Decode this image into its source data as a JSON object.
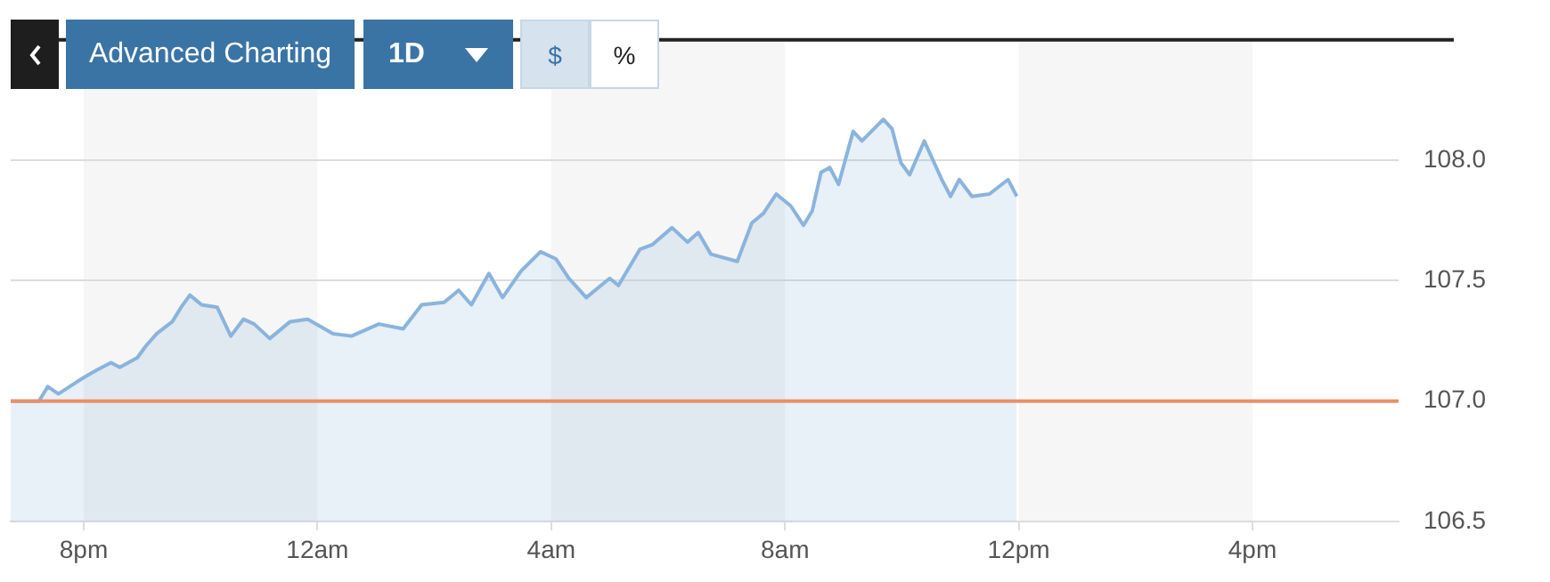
{
  "chart_data": {
    "type": "area",
    "annotations": [
      "Advanced Charting",
      "1D",
      "$",
      "%"
    ],
    "xlim": [
      "--01-01T18:45",
      "--01-02T18:30"
    ],
    "xticks": [
      {
        "value": "--01-01T20:00",
        "label": "8pm"
      },
      {
        "value": "--01-02T00:00",
        "label": "12am"
      },
      {
        "value": "--01-02T04:00",
        "label": "4am"
      },
      {
        "value": "--01-02T08:00",
        "label": "8am"
      },
      {
        "value": "--01-02T12:00",
        "label": "12pm"
      },
      {
        "value": "--01-02T16:00",
        "label": "4pm"
      }
    ],
    "ylim": [
      106.5,
      108.5
    ],
    "yticks": [
      106.5,
      {
        "value": 107,
        "label": "107.0"
      },
      107.5,
      {
        "value": 108,
        "label": "108.0"
      }
    ],
    "grid": "y",
    "legend": false,
    "marker": "none",
    "line_style": "solid",
    "ref_lines": [
      {
        "axis": "y",
        "value": 107,
        "color": "#e8906a"
      }
    ],
    "bands": [
      {
        "axis": "x",
        "from": "--01-01T20:00",
        "to": "--01-02T00:00",
        "color": "#f6f6f6"
      },
      {
        "axis": "x",
        "from": "--01-02T04:00",
        "to": "--01-02T08:00",
        "color": "#f6f6f6"
      },
      {
        "axis": "x",
        "from": "--01-02T12:00",
        "to": "--01-02T16:00",
        "color": "#f6f6f6"
      }
    ],
    "series": [
      {
        "color": "#8ab4dd",
        "x": [
          "--01-01T18:45",
          "--01-01T18:58",
          "--01-01T19:14",
          "--01-01T19:23",
          "--01-01T19:34",
          "--01-01T19:53",
          "--01-01T20:05",
          "--01-01T20:14",
          "--01-01T20:28",
          "--01-01T20:37",
          "--01-01T20:55",
          "--01-01T21:04",
          "--01-01T21:15",
          "--01-01T21:31",
          "--01-01T21:40",
          "--01-01T21:49",
          "--01-01T22:01",
          "--01-01T22:17",
          "--01-01T22:31",
          "--01-01T22:44",
          "--01-01T22:55",
          "--01-01T23:11",
          "--01-01T23:32",
          "--01-01T23:50",
          "--01-02T00:16",
          "--01-02T00:35",
          "--01-02T01:03",
          "--01-02T01:28",
          "--01-02T01:47",
          "--01-02T02:10",
          "--01-02T02:25",
          "--01-02T02:38",
          "--01-02T02:56",
          "--01-02T03:10",
          "--01-02T03:29",
          "--01-02T03:49",
          "--01-02T04:05",
          "--01-02T04:18",
          "--01-02T04:36",
          "--01-02T05:00",
          "--01-02T05:09",
          "--01-02T05:31",
          "--01-02T05:44",
          "--01-02T06:04",
          "--01-02T06:20",
          "--01-02T06:31",
          "--01-02T06:44",
          "--01-02T07:11",
          "--01-02T07:26",
          "--01-02T07:38",
          "--01-02T07:51",
          "--01-02T08:06",
          "--01-02T08:19",
          "--01-02T08:28",
          "--01-02T08:37",
          "--01-02T08:46",
          "--01-02T08:55",
          "--01-02T09:10",
          "--01-02T09:19",
          "--01-02T09:41",
          "--01-02T09:50",
          "--01-02T09:59",
          "--01-02T10:08",
          "--01-02T10:23",
          "--01-02T10:41",
          "--01-02T10:50",
          "--01-02T10:59",
          "--01-02T11:12",
          "--01-02T11:30",
          "--01-02T11:49",
          "--01-02T11:58"
        ],
        "values": [
          107.0,
          107.0,
          107.0,
          107.06,
          107.03,
          107.08,
          107.11,
          107.13,
          107.16,
          107.14,
          107.18,
          107.23,
          107.28,
          107.33,
          107.39,
          107.44,
          107.4,
          107.39,
          107.27,
          107.34,
          107.32,
          107.26,
          107.33,
          107.34,
          107.28,
          107.27,
          107.32,
          107.3,
          107.4,
          107.41,
          107.46,
          107.4,
          107.53,
          107.43,
          107.54,
          107.62,
          107.59,
          107.51,
          107.43,
          107.51,
          107.48,
          107.63,
          107.65,
          107.72,
          107.66,
          107.7,
          107.61,
          107.58,
          107.74,
          107.78,
          107.86,
          107.81,
          107.73,
          107.79,
          107.95,
          107.97,
          107.9,
          108.12,
          108.08,
          108.17,
          108.13,
          107.99,
          107.94,
          108.08,
          107.92,
          107.85,
          107.92,
          107.85,
          107.86,
          107.92,
          107.85
        ]
      }
    ]
  }
}
